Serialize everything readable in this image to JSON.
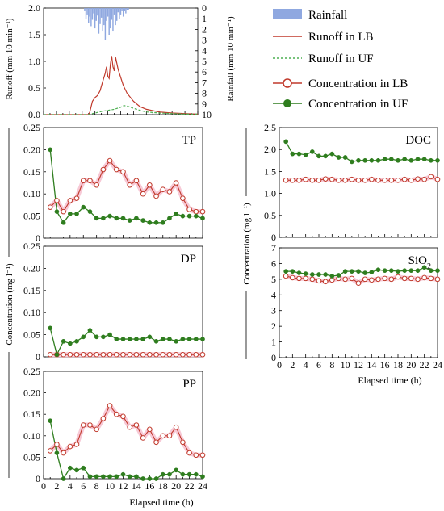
{
  "colors": {
    "lb": "#c0392b",
    "lb_halo": "#f7c9d6",
    "uf": "#2e7d1e",
    "uf_dash": "#4caf50",
    "rain": "#8fa8e0"
  },
  "legend": {
    "rainfall": "Rainfall",
    "runoff_lb": "Runoff in LB",
    "runoff_uf": "Runoff in UF",
    "conc_lb": "Concentration in LB",
    "conc_uf": "Concentration in UF"
  },
  "labels": {
    "runoff_axis": "Runoff (mm 10 min⁻¹)",
    "rain_axis": "Rainfall (mm 10 min⁻¹)",
    "conc_axis": "Concentration (mg l⁻¹)",
    "elapsed_left": "Elapsed time (h)",
    "elapsed_right": "Elapsed time (h)"
  },
  "chart_data": [
    {
      "id": "hydrograph",
      "type": "line",
      "xlim": [
        0,
        24
      ],
      "ylim": [
        0,
        2.0
      ],
      "y_ticks": [
        "0.0",
        "0.5",
        "1.0",
        "1.5",
        "2.0"
      ],
      "rain_ticks": [
        "0",
        "1",
        "2",
        "3",
        "4",
        "5",
        "6",
        "7",
        "8",
        "9",
        "10"
      ],
      "rain_ylim": [
        0,
        10
      ],
      "rainfall": {
        "x": [
          6.4,
          6.6,
          6.8,
          7.0,
          7.2,
          7.4,
          7.6,
          7.8,
          8.0,
          8.2,
          8.4,
          8.6,
          8.8,
          9.0,
          9.2,
          9.4,
          9.6,
          9.8,
          10.0,
          10.2,
          10.4,
          10.6,
          10.8,
          11.0,
          11.2,
          11.4,
          11.6,
          11.8,
          12.0,
          12.2,
          12.4,
          12.6,
          12.8,
          13.0,
          13.2
        ],
        "values": [
          0.3,
          1.0,
          0.6,
          1.4,
          0.8,
          1.7,
          1.1,
          0.5,
          1.9,
          1.2,
          0.7,
          2.4,
          1.5,
          0.9,
          2.2,
          1.6,
          3.0,
          1.2,
          0.8,
          2.5,
          1.9,
          1.1,
          2.2,
          0.6,
          1.6,
          1.2,
          0.4,
          1.0,
          0.6,
          0.3,
          0.8,
          0.3,
          0.5,
          0.2,
          0.2
        ]
      },
      "series": [
        {
          "name": "Runoff in LB",
          "x": [
            0,
            6,
            7.0,
            7.2,
            7.6,
            8.0,
            8.4,
            8.8,
            9.2,
            9.6,
            9.8,
            10.0,
            10.2,
            10.4,
            10.6,
            10.8,
            11.0,
            11.2,
            11.6,
            12.0,
            12.4,
            13.0,
            14.0,
            15.0,
            16.0,
            18.0,
            20.0,
            22.0,
            24.0
          ],
          "values": [
            0,
            0,
            0,
            0.05,
            0.25,
            0.32,
            0.36,
            0.45,
            0.62,
            0.78,
            0.9,
            0.72,
            0.68,
            0.95,
            1.1,
            0.9,
            0.82,
            1.08,
            0.85,
            0.7,
            0.55,
            0.4,
            0.25,
            0.15,
            0.1,
            0.05,
            0.03,
            0.02,
            0.01
          ]
        },
        {
          "name": "Runoff in UF",
          "x": [
            0,
            7.0,
            8.0,
            9.0,
            10.0,
            11.0,
            12.0,
            12.5,
            13.0,
            14.0,
            15.0,
            16.0,
            18.0,
            20.0,
            22.0,
            24.0
          ],
          "values": [
            0,
            0,
            0.03,
            0.06,
            0.08,
            0.1,
            0.14,
            0.17,
            0.16,
            0.12,
            0.08,
            0.05,
            0.03,
            0.02,
            0.01,
            0.01
          ]
        }
      ]
    },
    {
      "id": "TP",
      "type": "line",
      "title": "TP",
      "xlim": [
        0,
        24
      ],
      "ylim": [
        0,
        0.25
      ],
      "y_ticks": [
        "0",
        "0.05",
        "0.10",
        "0.15",
        "0.20",
        "0.25"
      ],
      "series": [
        {
          "name": "Concentration in LB",
          "x": [
            1,
            2,
            3,
            4,
            5,
            6,
            7,
            8,
            9,
            10,
            11,
            12,
            13,
            14,
            15,
            16,
            17,
            18,
            19,
            20,
            21,
            22,
            23,
            24
          ],
          "values": [
            0.07,
            0.085,
            0.06,
            0.085,
            0.09,
            0.13,
            0.13,
            0.12,
            0.155,
            0.175,
            0.155,
            0.15,
            0.12,
            0.13,
            0.1,
            0.12,
            0.095,
            0.11,
            0.105,
            0.125,
            0.09,
            0.065,
            0.06,
            0.06
          ]
        },
        {
          "name": "Concentration in UF",
          "x": [
            1,
            2,
            3,
            4,
            5,
            6,
            7,
            8,
            9,
            10,
            11,
            12,
            13,
            14,
            15,
            16,
            17,
            18,
            19,
            20,
            21,
            22,
            23,
            24
          ],
          "values": [
            0.2,
            0.06,
            0.035,
            0.055,
            0.055,
            0.07,
            0.06,
            0.045,
            0.045,
            0.05,
            0.045,
            0.045,
            0.04,
            0.045,
            0.04,
            0.035,
            0.035,
            0.035,
            0.045,
            0.055,
            0.05,
            0.05,
            0.05,
            0.045
          ]
        }
      ]
    },
    {
      "id": "DP",
      "type": "line",
      "title": "DP",
      "xlim": [
        0,
        24
      ],
      "ylim": [
        0,
        0.25
      ],
      "y_ticks": [
        "0",
        "0.05",
        "0.10",
        "0.15",
        "0.20",
        "0.25"
      ],
      "series": [
        {
          "name": "Concentration in LB",
          "x": [
            1,
            2,
            3,
            4,
            5,
            6,
            7,
            8,
            9,
            10,
            11,
            12,
            13,
            14,
            15,
            16,
            17,
            18,
            19,
            20,
            21,
            22,
            23,
            24
          ],
          "values": [
            0.005,
            0.005,
            0.005,
            0.005,
            0.005,
            0.005,
            0.005,
            0.005,
            0.005,
            0.005,
            0.005,
            0.005,
            0.005,
            0.005,
            0.005,
            0.005,
            0.005,
            0.005,
            0.005,
            0.005,
            0.005,
            0.005,
            0.005,
            0.005
          ]
        },
        {
          "name": "Concentration in UF",
          "x": [
            1,
            2,
            3,
            4,
            5,
            6,
            7,
            8,
            9,
            10,
            11,
            12,
            13,
            14,
            15,
            16,
            17,
            18,
            19,
            20,
            21,
            22,
            23,
            24
          ],
          "values": [
            0.065,
            0.005,
            0.035,
            0.03,
            0.035,
            0.045,
            0.06,
            0.045,
            0.045,
            0.05,
            0.04,
            0.04,
            0.04,
            0.04,
            0.04,
            0.045,
            0.035,
            0.04,
            0.04,
            0.035,
            0.04,
            0.04,
            0.04,
            0.04
          ]
        }
      ]
    },
    {
      "id": "PP",
      "type": "line",
      "title": "PP",
      "xlim": [
        0,
        24
      ],
      "ylim": [
        0,
        0.25
      ],
      "y_ticks": [
        "0",
        "0.05",
        "0.10",
        "0.15",
        "0.20",
        "0.25"
      ],
      "x_ticks": [
        "0",
        "2",
        "4",
        "6",
        "8",
        "10",
        "12",
        "14",
        "16",
        "18",
        "20",
        "22",
        "24"
      ],
      "series": [
        {
          "name": "Concentration in LB",
          "x": [
            1,
            2,
            3,
            4,
            5,
            6,
            7,
            8,
            9,
            10,
            11,
            12,
            13,
            14,
            15,
            16,
            17,
            18,
            19,
            20,
            21,
            22,
            23,
            24
          ],
          "values": [
            0.065,
            0.08,
            0.06,
            0.075,
            0.08,
            0.125,
            0.125,
            0.115,
            0.14,
            0.17,
            0.15,
            0.145,
            0.12,
            0.125,
            0.095,
            0.115,
            0.085,
            0.1,
            0.1,
            0.12,
            0.085,
            0.06,
            0.055,
            0.055
          ]
        },
        {
          "name": "Concentration in UF",
          "x": [
            1,
            2,
            3,
            4,
            5,
            6,
            7,
            8,
            9,
            10,
            11,
            12,
            13,
            14,
            15,
            16,
            17,
            18,
            19,
            20,
            21,
            22,
            23,
            24
          ],
          "values": [
            0.135,
            0.06,
            0.0,
            0.025,
            0.02,
            0.025,
            0.005,
            0.005,
            0.005,
            0.005,
            0.005,
            0.01,
            0.005,
            0.005,
            0.0,
            0.0,
            0.0,
            0.01,
            0.01,
            0.02,
            0.01,
            0.01,
            0.01,
            0.005
          ]
        }
      ]
    },
    {
      "id": "DOC",
      "type": "line",
      "title": "DOC",
      "xlim": [
        0,
        24
      ],
      "ylim": [
        0,
        2.5
      ],
      "y_ticks": [
        "0",
        "0.5",
        "1.0",
        "1.5",
        "2.0",
        "2.5"
      ],
      "series": [
        {
          "name": "Concentration in LB",
          "x": [
            1,
            2,
            3,
            4,
            5,
            6,
            7,
            8,
            9,
            10,
            11,
            12,
            13,
            14,
            15,
            16,
            17,
            18,
            19,
            20,
            21,
            22,
            23,
            24
          ],
          "values": [
            1.3,
            1.3,
            1.3,
            1.32,
            1.3,
            1.3,
            1.33,
            1.32,
            1.3,
            1.3,
            1.32,
            1.3,
            1.3,
            1.32,
            1.3,
            1.3,
            1.3,
            1.3,
            1.32,
            1.3,
            1.33,
            1.32,
            1.38,
            1.32
          ]
        },
        {
          "name": "Concentration in UF",
          "x": [
            1,
            2,
            3,
            4,
            5,
            6,
            7,
            8,
            9,
            10,
            11,
            12,
            13,
            14,
            15,
            16,
            17,
            18,
            19,
            20,
            21,
            22,
            23,
            24
          ],
          "values": [
            2.18,
            1.9,
            1.9,
            1.88,
            1.95,
            1.85,
            1.85,
            1.9,
            1.82,
            1.82,
            1.72,
            1.75,
            1.75,
            1.75,
            1.75,
            1.78,
            1.78,
            1.75,
            1.78,
            1.75,
            1.78,
            1.78,
            1.75,
            1.75
          ]
        }
      ]
    },
    {
      "id": "SiO2",
      "type": "line",
      "title": "SiO",
      "title_sub": "2",
      "xlim": [
        0,
        24
      ],
      "ylim": [
        0,
        7
      ],
      "y_ticks": [
        "0",
        "1",
        "2",
        "3",
        "4",
        "5",
        "6",
        "7"
      ],
      "x_ticks": [
        "0",
        "2",
        "4",
        "6",
        "8",
        "10",
        "12",
        "14",
        "16",
        "18",
        "20",
        "22",
        "24"
      ],
      "series": [
        {
          "name": "Concentration in LB",
          "x": [
            1,
            2,
            3,
            4,
            5,
            6,
            7,
            8,
            9,
            10,
            11,
            12,
            13,
            14,
            15,
            16,
            17,
            18,
            19,
            20,
            21,
            22,
            23,
            24
          ],
          "values": [
            5.2,
            5.1,
            5.05,
            5.05,
            5.0,
            4.9,
            4.85,
            4.95,
            5.05,
            5.0,
            5.05,
            4.75,
            5.0,
            4.95,
            5.0,
            5.05,
            5.0,
            5.15,
            5.05,
            5.05,
            5.0,
            5.1,
            5.05,
            5.0
          ]
        },
        {
          "name": "Concentration in UF",
          "x": [
            1,
            2,
            3,
            4,
            5,
            6,
            7,
            8,
            9,
            10,
            11,
            12,
            13,
            14,
            15,
            16,
            17,
            18,
            19,
            20,
            21,
            22,
            23,
            24
          ],
          "values": [
            5.5,
            5.5,
            5.4,
            5.35,
            5.3,
            5.3,
            5.3,
            5.2,
            5.25,
            5.5,
            5.5,
            5.5,
            5.4,
            5.45,
            5.6,
            5.55,
            5.55,
            5.5,
            5.55,
            5.55,
            5.55,
            5.75,
            5.55,
            5.55
          ]
        }
      ]
    }
  ]
}
